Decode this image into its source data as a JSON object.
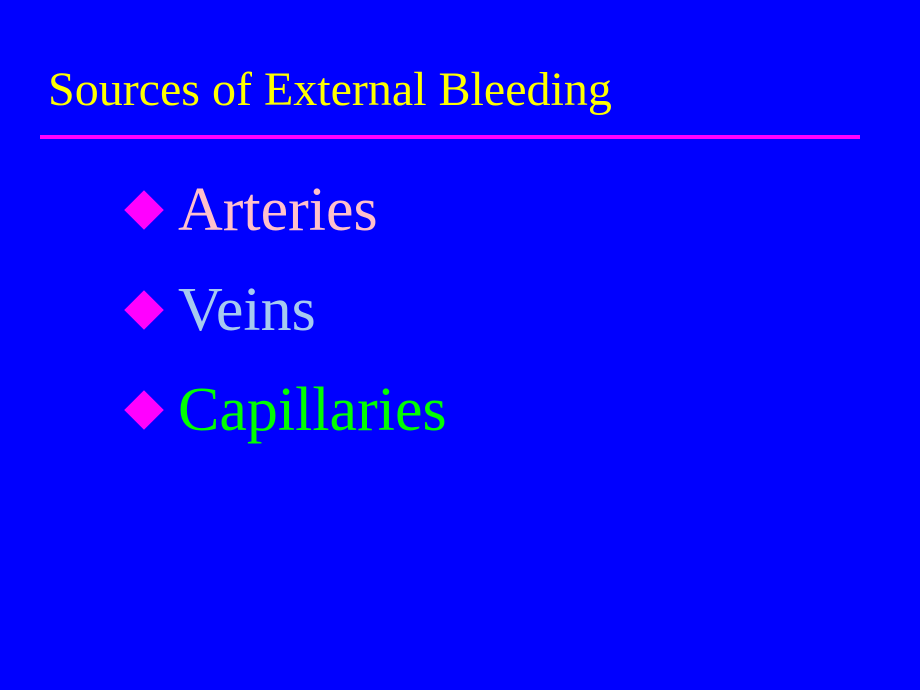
{
  "slide": {
    "background_color": "#0000ff",
    "title": {
      "text": "Sources of External Bleeding",
      "color": "#ffff00",
      "fontsize": 48
    },
    "underline_color": "#ff00ff",
    "bullet_color": "#ff00ff",
    "items": [
      {
        "label": "Arteries",
        "color": "#ffc0cb"
      },
      {
        "label": "Veins",
        "color": "#a6caf0"
      },
      {
        "label": "Capillaries",
        "color": "#00ff00"
      }
    ],
    "item_fontsize": 62
  }
}
